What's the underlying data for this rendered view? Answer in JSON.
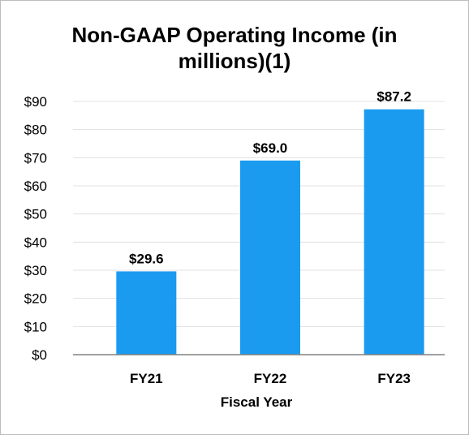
{
  "chart_data": {
    "type": "bar",
    "title_lines": [
      "Non-GAAP Operating Income (in",
      "millions)(1)"
    ],
    "categories": [
      "FY21",
      "FY22",
      "FY23"
    ],
    "values": [
      29.6,
      69.0,
      87.2
    ],
    "data_labels": [
      "$29.6",
      "$69.0",
      "$87.2"
    ],
    "xlabel": "Fiscal Year",
    "ylabel": "",
    "ylim": [
      0,
      90
    ],
    "yticks": [
      0,
      10,
      20,
      30,
      40,
      50,
      60,
      70,
      80,
      90
    ],
    "ytick_labels": [
      "$0",
      "$10",
      "$20",
      "$30",
      "$40",
      "$50",
      "$60",
      "$70",
      "$80",
      "$90"
    ],
    "grid": true,
    "bar_color": "#1a9bf0",
    "grid_color": "#e0e0e0",
    "axis_color": "#808080"
  }
}
